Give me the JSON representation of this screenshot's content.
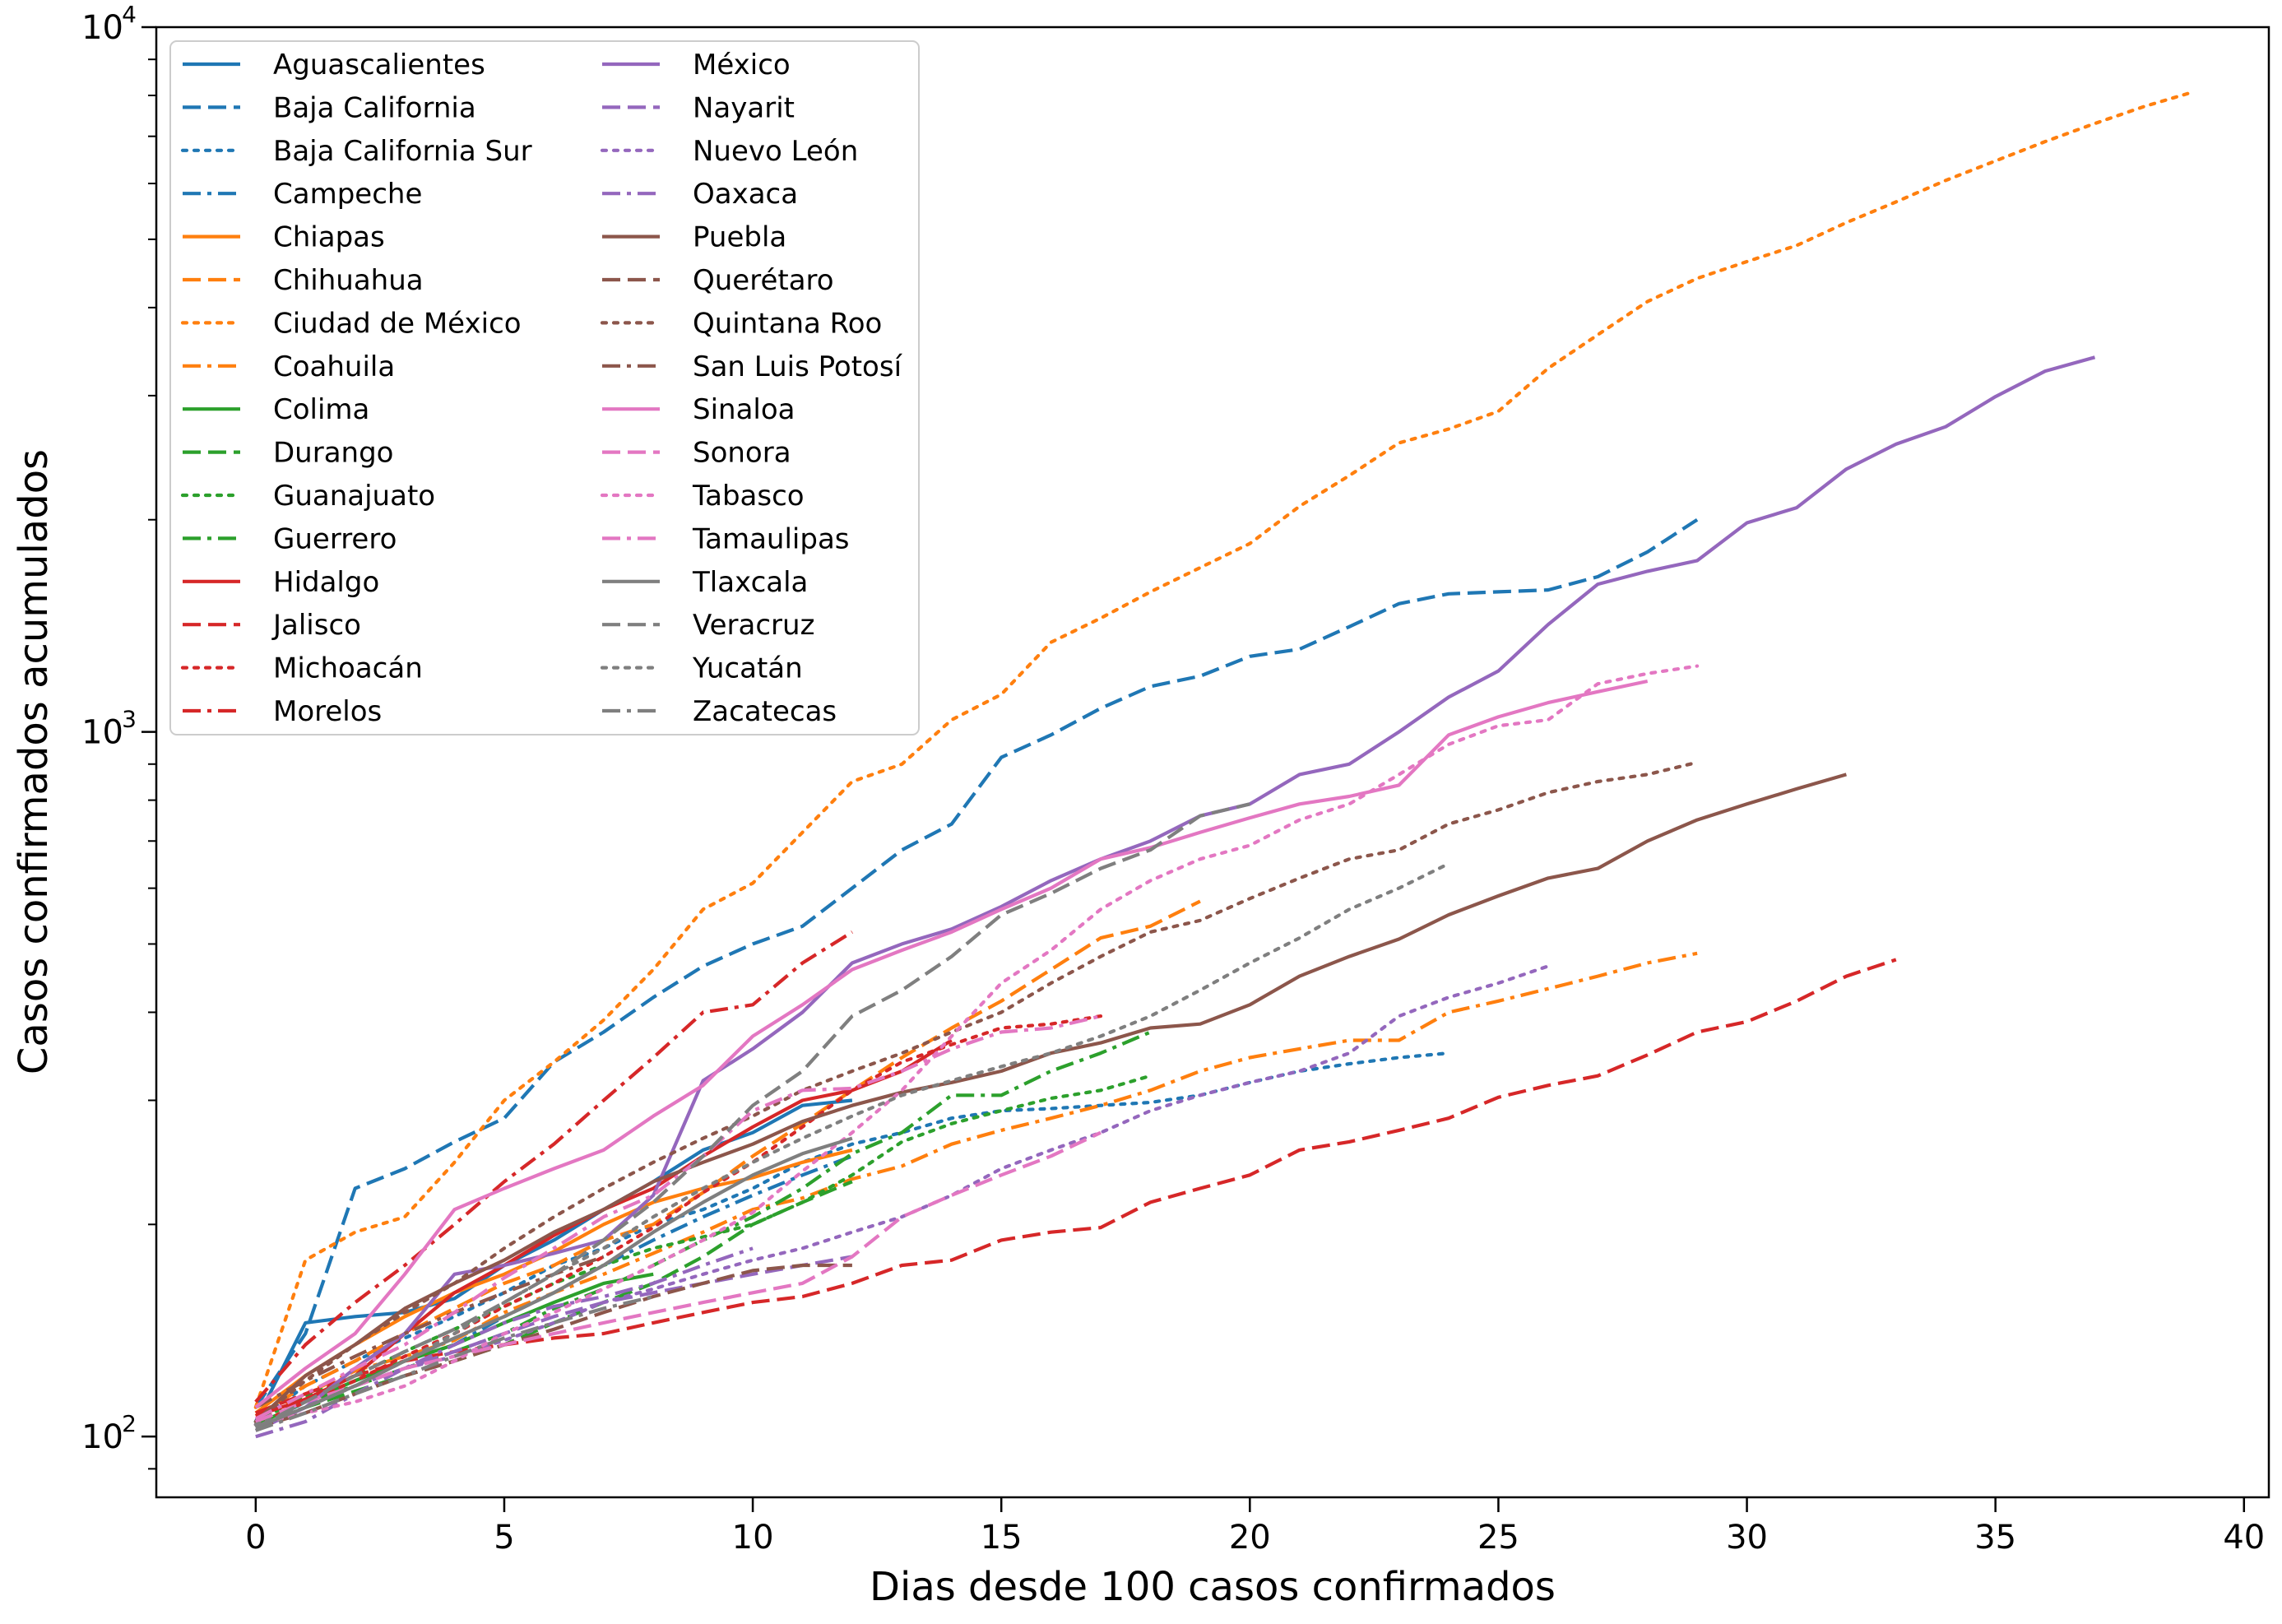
{
  "chart_data": {
    "type": "line",
    "title": "",
    "xlabel": "Dias desde 100 casos confirmados",
    "ylabel": "Casos confirmados acumulados",
    "xlim": [
      -2,
      40.5
    ],
    "ylim": [
      82,
      10000
    ],
    "yscale": "log",
    "grid": false,
    "legend_placement": "top-left",
    "legend_columns": 2,
    "x_ticks": [
      0,
      5,
      10,
      15,
      20,
      25,
      30,
      35,
      40
    ],
    "x_tick_labels": [
      "0",
      "5",
      "10",
      "15",
      "20",
      "25",
      "30",
      "35",
      "40"
    ],
    "y_ticks": [
      100,
      1000,
      10000
    ],
    "y_tick_labels": [
      {
        "base": "10",
        "exp": "2"
      },
      {
        "base": "10",
        "exp": "3"
      },
      {
        "base": "10",
        "exp": "4"
      }
    ],
    "series": [
      {
        "name": "Aguascalientes",
        "color": "#1f77b4",
        "dash": "solid",
        "values": [
          105,
          145,
          148,
          150,
          157,
          175,
          190,
          210,
          230,
          255,
          270,
          295,
          300
        ]
      },
      {
        "name": "Baja California",
        "color": "#1f77b4",
        "dash": "dashed",
        "values": [
          110,
          140,
          225,
          240,
          262,
          283,
          340,
          375,
          420,
          465,
          500,
          530,
          600,
          680,
          740,
          920,
          990,
          1080,
          1160,
          1200,
          1280,
          1310,
          1410,
          1520,
          1570,
          1580,
          1590,
          1660,
          1800,
          2000
        ]
      },
      {
        "name": "Baja California Sur",
        "color": "#1f77b4",
        "dotted": true,
        "dash": "dotted",
        "values": [
          105,
          118,
          128,
          138,
          148,
          160,
          175,
          185,
          200,
          210,
          225,
          245,
          260,
          270,
          283,
          290,
          292,
          295,
          298,
          305,
          318,
          330,
          338,
          345,
          350
        ]
      },
      {
        "name": "Campeche",
        "color": "#1f77b4",
        "dash": "dashdot",
        "values": [
          103,
          112,
          120,
          128,
          135,
          148,
          160,
          175,
          190,
          205,
          220,
          235,
          250
        ]
      },
      {
        "name": "Chiapas",
        "color": "#ff7f0e",
        "dash": "solid",
        "values": [
          108,
          122,
          135,
          148,
          160,
          170,
          183,
          200,
          215,
          225,
          233,
          245,
          255
        ]
      },
      {
        "name": "Chihuahua",
        "color": "#ff7f0e",
        "dash": "dashed",
        "values": [
          107,
          118,
          128,
          140,
          152,
          165,
          175,
          190,
          200,
          222,
          250,
          278,
          310,
          345,
          380,
          415,
          460,
          510,
          530,
          575
        ]
      },
      {
        "name": "Ciudad de México",
        "color": "#ff7f0e",
        "dash": "dotted",
        "values": [
          110,
          178,
          195,
          205,
          245,
          300,
          340,
          390,
          460,
          560,
          610,
          720,
          850,
          900,
          1040,
          1130,
          1340,
          1450,
          1580,
          1710,
          1850,
          2090,
          2310,
          2570,
          2690,
          2850,
          3280,
          3660,
          4080,
          4400,
          4650,
          4900,
          5280,
          5650,
          6060,
          6460,
          6880,
          7300,
          7720,
          8100
        ]
      },
      {
        "name": "Coahuila",
        "color": "#ff7f0e",
        "dash": "dashdot",
        "values": [
          105,
          115,
          124,
          130,
          137,
          150,
          160,
          170,
          182,
          195,
          210,
          218,
          232,
          242,
          260,
          272,
          283,
          295,
          310,
          330,
          345,
          355,
          365,
          365,
          400,
          415,
          432,
          450,
          470,
          485
        ]
      },
      {
        "name": "Colima",
        "color": "#2ca02c",
        "dash": "solid",
        "values": [
          104,
          112,
          120,
          128,
          135,
          145,
          155,
          165,
          170
        ]
      },
      {
        "name": "Durango",
        "color": "#2ca02c",
        "dash": "dashed",
        "values": [
          103,
          110,
          116,
          122,
          128,
          135,
          145,
          155,
          165,
          180,
          200,
          215,
          230
        ]
      },
      {
        "name": "Guanajuato",
        "color": "#2ca02c",
        "dash": "dotted",
        "values": [
          105,
          114,
          122,
          132,
          142,
          153,
          165,
          175,
          185,
          192,
          200,
          215,
          235,
          262,
          278,
          290,
          302,
          310,
          325
        ]
      },
      {
        "name": "Guerrero",
        "color": "#2ca02c",
        "dash": "dashdot",
        "values": [
          104,
          112,
          118,
          125,
          132,
          140,
          152,
          162,
          175,
          190,
          205,
          225,
          252,
          270,
          305,
          305,
          330,
          350,
          375
        ]
      },
      {
        "name": "Hidalgo",
        "color": "#d62728",
        "dash": "solid",
        "values": [
          107,
          113,
          122,
          140,
          160,
          175,
          193,
          210,
          225,
          250,
          275,
          300,
          310,
          330,
          365
        ]
      },
      {
        "name": "Jalisco",
        "color": "#d62728",
        "dash": "dashed",
        "values": [
          108,
          115,
          122,
          128,
          132,
          135,
          138,
          140,
          145,
          150,
          155,
          158,
          165,
          175,
          178,
          190,
          195,
          198,
          215,
          225,
          235,
          255,
          262,
          272,
          283,
          303,
          315,
          325,
          348,
          375,
          388,
          415,
          450,
          475
        ]
      },
      {
        "name": "Michoacán",
        "color": "#d62728",
        "dash": "dotted",
        "values": [
          104,
          112,
          120,
          130,
          140,
          153,
          165,
          180,
          198,
          222,
          245,
          275,
          310,
          340,
          360,
          380,
          385,
          395
        ]
      },
      {
        "name": "Morelos",
        "color": "#d62728",
        "dash": "dashdot",
        "values": [
          112,
          135,
          155,
          175,
          200,
          230,
          260,
          300,
          345,
          400,
          410,
          470,
          520
        ]
      },
      {
        "name": "México",
        "color": "#9467bd",
        "dash": "solid",
        "values": [
          102,
          110,
          125,
          140,
          170,
          175,
          182,
          190,
          220,
          320,
          355,
          400,
          470,
          500,
          525,
          565,
          615,
          660,
          700,
          760,
          790,
          870,
          900,
          1000,
          1120,
          1220,
          1420,
          1620,
          1690,
          1750,
          1980,
          2080,
          2360,
          2560,
          2710,
          2990,
          3250,
          3400
        ]
      },
      {
        "name": "Nayarit",
        "color": "#9467bd",
        "dash": "dashed",
        "values": [
          102,
          110,
          118,
          125,
          132,
          140,
          148,
          155,
          160,
          165,
          170,
          175,
          180
        ]
      },
      {
        "name": "Nuevo León",
        "color": "#9467bd",
        "dash": "dotted",
        "values": [
          104,
          110,
          118,
          125,
          130,
          137,
          145,
          155,
          162,
          170,
          178,
          185,
          195,
          205,
          220,
          240,
          255,
          270,
          290,
          305,
          318,
          330,
          350,
          395,
          420,
          440,
          465
        ]
      },
      {
        "name": "Oaxaca",
        "color": "#9467bd",
        "dash": "dashdot",
        "values": [
          100,
          105,
          115,
          125,
          135,
          145,
          153,
          158,
          165,
          175,
          185
        ]
      },
      {
        "name": "Puebla",
        "color": "#8c564b",
        "dash": "solid",
        "values": [
          105,
          122,
          135,
          152,
          165,
          178,
          195,
          210,
          230,
          245,
          260,
          280,
          295,
          308,
          318,
          330,
          350,
          362,
          380,
          385,
          410,
          450,
          480,
          508,
          550,
          585,
          620,
          640,
          700,
          750,
          790,
          830,
          870
        ]
      },
      {
        "name": "Querétaro",
        "color": "#8c564b",
        "dash": "dashed",
        "values": [
          103,
          108,
          115,
          122,
          128,
          135,
          142,
          150,
          158,
          165,
          172,
          175,
          175
        ]
      },
      {
        "name": "Quintana Roo",
        "color": "#8c564b",
        "dash": "dotted",
        "values": [
          105,
          120,
          135,
          150,
          165,
          185,
          205,
          225,
          245,
          265,
          285,
          310,
          330,
          350,
          375,
          400,
          440,
          480,
          520,
          540,
          580,
          620,
          660,
          680,
          740,
          775,
          820,
          850,
          870,
          905
        ]
      },
      {
        "name": "San Luis Potosí",
        "color": "#8c564b",
        "dash": "dashdot",
        "values": [
          110,
          120,
          130,
          140,
          150,
          160,
          170,
          180
        ]
      },
      {
        "name": "Sinaloa",
        "color": "#e377c2",
        "dash": "solid",
        "values": [
          110,
          125,
          140,
          170,
          210,
          225,
          240,
          255,
          285,
          315,
          370,
          410,
          460,
          490,
          520,
          560,
          600,
          660,
          685,
          720,
          755,
          790,
          810,
          840,
          990,
          1050,
          1100,
          1140,
          1180
        ]
      },
      {
        "name": "Sonora",
        "color": "#e377c2",
        "dash": "dashed",
        "values": [
          105,
          112,
          118,
          125,
          130,
          135,
          140,
          145,
          150,
          155,
          160,
          165,
          180,
          205,
          220,
          235,
          250,
          270
        ]
      },
      {
        "name": "Tabasco",
        "color": "#e377c2",
        "dash": "dotted",
        "values": [
          104,
          108,
          112,
          118,
          128,
          140,
          150,
          162,
          175,
          190,
          208,
          238,
          270,
          310,
          370,
          440,
          490,
          560,
          615,
          660,
          690,
          750,
          790,
          870,
          960,
          1020,
          1040,
          1170,
          1210,
          1240
        ]
      },
      {
        "name": "Tamaulipas",
        "color": "#e377c2",
        "dash": "dashdot",
        "values": [
          106,
          115,
          125,
          135,
          150,
          168,
          185,
          205,
          220,
          250,
          290,
          310,
          312,
          330,
          355,
          375,
          380,
          395
        ]
      },
      {
        "name": "Tlaxcala",
        "color": "#7f7f7f",
        "dash": "solid",
        "values": [
          103,
          110,
          118,
          128,
          138,
          148,
          160,
          175,
          195,
          215,
          235,
          252,
          265
        ]
      },
      {
        "name": "Veracruz",
        "color": "#7f7f7f",
        "dash": "dashed",
        "values": [
          103,
          112,
          122,
          132,
          142,
          155,
          170,
          190,
          215,
          250,
          295,
          330,
          395,
          430,
          480,
          550,
          590,
          640,
          680,
          760,
          790
        ]
      },
      {
        "name": "Yucatán",
        "color": "#7f7f7f",
        "dash": "dotted",
        "values": [
          104,
          110,
          118,
          128,
          140,
          155,
          170,
          185,
          205,
          225,
          245,
          265,
          285,
          305,
          320,
          335,
          350,
          370,
          395,
          430,
          470,
          510,
          560,
          600,
          650
        ]
      },
      {
        "name": "Zacatecas",
        "color": "#7f7f7f",
        "dash": "dashdot",
        "values": [
          102,
          108,
          115,
          122,
          130,
          138,
          145,
          152,
          158
        ]
      }
    ]
  }
}
